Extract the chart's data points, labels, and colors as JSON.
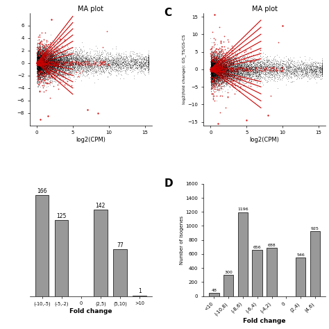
{
  "panel_A": {
    "title": "MA plot",
    "xlabel": "log2(CPM)",
    "ylabel": "",
    "xlim": [
      -1,
      16
    ],
    "ylim": [
      -10,
      8
    ],
    "xticks": [
      0,
      5,
      10,
      15
    ],
    "yticks": [
      -8,
      -6,
      -4,
      -2,
      0,
      2,
      4,
      6
    ]
  },
  "panel_C": {
    "title": "MA plot",
    "xlabel": "log2(CPM)",
    "ylabel": "log2(fold change): GS_TS/GS-CS",
    "xlim": [
      -1,
      16
    ],
    "ylim": [
      -16,
      16
    ],
    "xticks": [
      0,
      5,
      10,
      15
    ],
    "yticks": [
      -15,
      -10,
      -5,
      0,
      5,
      10,
      15
    ],
    "label": "C"
  },
  "panel_B": {
    "categories": [
      "(-10,-5)",
      "(-5,-2)",
      "0",
      "(2,5)",
      "(5,10)",
      ">10"
    ],
    "values": [
      166,
      125,
      0,
      142,
      77,
      1
    ],
    "xlabel": "Fold change",
    "ylabel": "",
    "ylim": [
      0,
      185
    ],
    "bar_color": "#999999"
  },
  "panel_D": {
    "categories": [
      "<10",
      "(-10,8)",
      "(-8,6)",
      "(-6,4)",
      "(-4,2)",
      "0",
      "(2,4)",
      "(4,6)"
    ],
    "values": [
      48,
      300,
      1196,
      656,
      688,
      0,
      546,
      925
    ],
    "xlabel": "Fold change",
    "ylabel": "Number of isogenes",
    "ylim": [
      0,
      1600
    ],
    "yticks": [
      0,
      200,
      400,
      600,
      800,
      1000,
      1200,
      1400,
      1600
    ],
    "bar_color": "#999999",
    "label": "D"
  },
  "background_color": "#ffffff",
  "scatter_black_color": "#000000",
  "scatter_red_color": "#cc0000"
}
